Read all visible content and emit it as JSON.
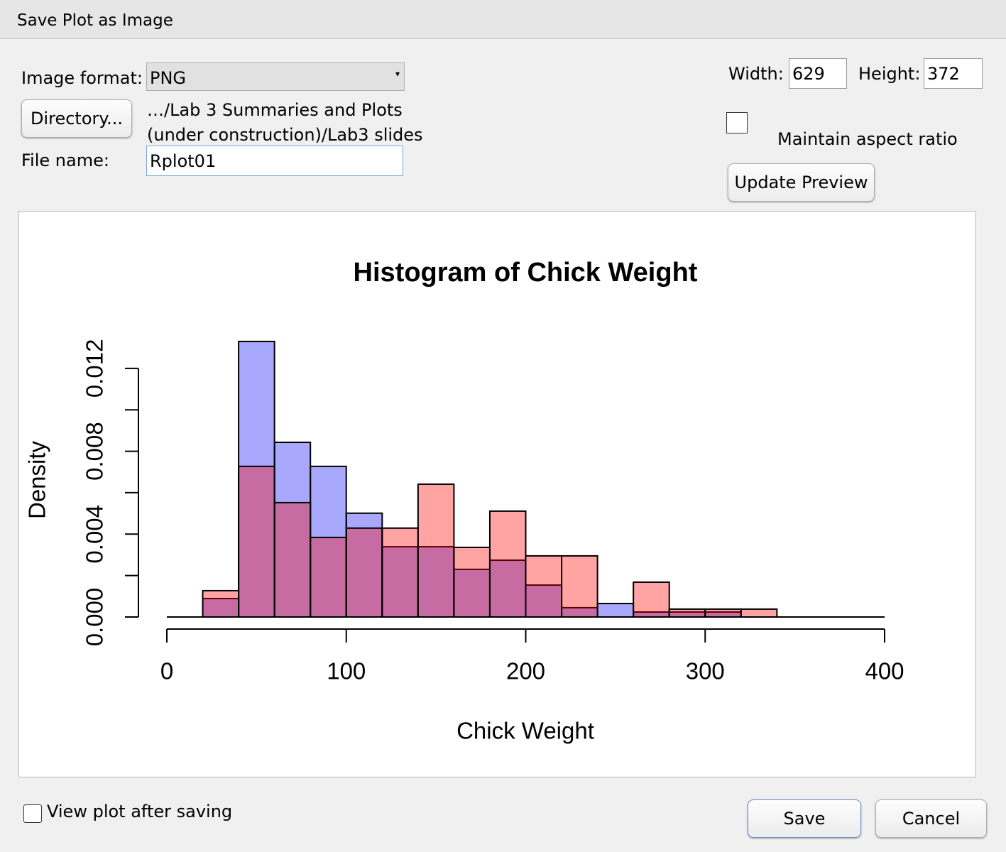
{
  "dialog": {
    "title": "Save Plot as Image",
    "image_format_label": "Image format:",
    "image_format": "PNG",
    "directory_button": "Directory...",
    "directory_path": "…/Lab 3 Summaries and Plots (under construction)/Lab3 slides",
    "file_name_label": "File name:",
    "file_name": "Rplot01",
    "width_label": "Width:",
    "width": 629,
    "height_label": "Height:",
    "height": 372,
    "maintain_aspect_ratio": "Maintain aspect ratio",
    "update_preview": "Update Preview",
    "view_after_saving": "View plot after saving",
    "save": "Save",
    "cancel": "Cancel"
  },
  "chart_data": {
    "type": "histogram",
    "title": "Histogram of Chick Weight",
    "x_label": "Chick Weight",
    "y_label": "Density",
    "bins": [
      20,
      40,
      60,
      80,
      100,
      120,
      140,
      160,
      180,
      200,
      220,
      240,
      260,
      280,
      300,
      320,
      340
    ],
    "series": [
      {
        "color": "rgba(0,0,255,0.34)",
        "values": [
          0.00089,
          0.0133,
          0.00843,
          0.00727,
          0.00501,
          0.00339,
          0.00339,
          0.0023,
          0.00274,
          0.00154,
          0.00045,
          0.00065,
          0.00024,
          0.00024,
          0.00024,
          0
        ]
      },
      {
        "color": "rgba(255,0,0,0.36)",
        "values": [
          0.00127,
          0.00727,
          0.00552,
          0.00384,
          0.00429,
          0.00429,
          0.00641,
          0.00336,
          0.00511,
          0.00295,
          0.00295,
          0,
          0.00168,
          0.00038,
          0.00038,
          0.00038
        ]
      }
    ],
    "xlim": [
      0,
      400
    ],
    "xticks": [
      0,
      100,
      200,
      300,
      400
    ],
    "ylim": [
      0,
      0.0134
    ],
    "yticks": [
      {
        "value": 0,
        "label": "0.000"
      },
      {
        "value": 0.004,
        "label": "0.004"
      },
      {
        "value": 0.008,
        "label": "0.008"
      },
      {
        "value": 0.012,
        "label": "0.012"
      }
    ],
    "yminor_ticks": [
      0.002,
      0.006,
      0.01
    ]
  }
}
